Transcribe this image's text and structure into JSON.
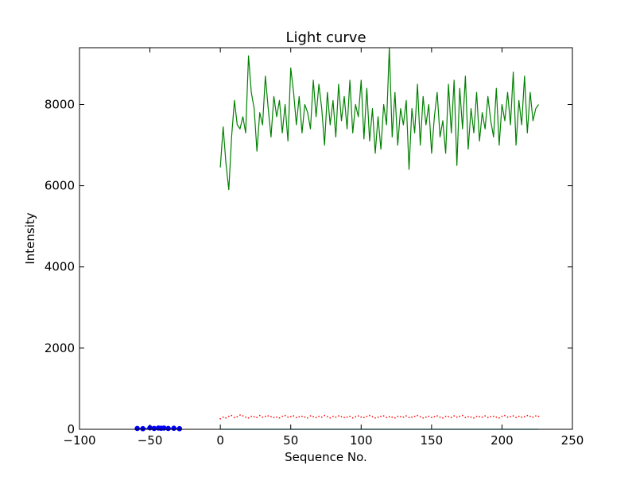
{
  "chart_data": {
    "type": "line",
    "title": "Light curve",
    "xlabel": "Sequence No.",
    "ylabel": "Intensity",
    "xlim": [
      -100,
      250
    ],
    "ylim": [
      0,
      9400
    ],
    "xticks": [
      -100,
      -50,
      0,
      50,
      100,
      150,
      200,
      250
    ],
    "yticks": [
      0,
      2000,
      4000,
      6000,
      8000
    ],
    "x_tick_labels": [
      "−100",
      "−50",
      "0",
      "50",
      "100",
      "150",
      "200",
      "250"
    ],
    "y_tick_labels": [
      "0",
      "2000",
      "4000",
      "6000",
      "8000"
    ],
    "grid": false,
    "legend": "none",
    "series": [
      {
        "style": "line",
        "color": "#008000",
        "x": [
          0,
          2,
          4,
          6,
          8,
          10,
          12,
          14,
          16,
          18,
          20,
          22,
          24,
          26,
          28,
          30,
          32,
          34,
          36,
          38,
          40,
          42,
          44,
          46,
          48,
          50,
          52,
          54,
          56,
          58,
          60,
          62,
          64,
          66,
          68,
          70,
          72,
          74,
          76,
          78,
          80,
          82,
          84,
          86,
          88,
          90,
          92,
          94,
          96,
          98,
          100,
          102,
          104,
          106,
          108,
          110,
          112,
          114,
          116,
          118,
          120,
          122,
          124,
          126,
          128,
          130,
          132,
          134,
          136,
          138,
          140,
          142,
          144,
          146,
          148,
          150,
          152,
          154,
          156,
          158,
          160,
          162,
          164,
          166,
          168,
          170,
          172,
          174,
          176,
          178,
          180,
          182,
          184,
          186,
          188,
          190,
          192,
          194,
          196,
          198,
          200,
          202,
          204,
          206,
          208,
          210,
          212,
          214,
          216,
          218,
          220,
          222,
          224,
          226
        ],
        "y": [
          6450,
          7450,
          6550,
          5900,
          7200,
          8100,
          7500,
          7400,
          7700,
          7300,
          9200,
          8300,
          7900,
          6850,
          7800,
          7500,
          8700,
          7900,
          7200,
          8200,
          7700,
          8100,
          7300,
          8000,
          7100,
          8900,
          8300,
          7500,
          8200,
          7300,
          8000,
          7800,
          7400,
          8600,
          7700,
          8500,
          7900,
          7000,
          8300,
          7500,
          8100,
          7200,
          8500,
          7600,
          8200,
          7400,
          8600,
          7300,
          8000,
          7700,
          8600,
          7150,
          8400,
          7100,
          7900,
          6800,
          7700,
          6900,
          8000,
          7500,
          9400,
          7200,
          8300,
          7000,
          7900,
          7500,
          8100,
          6400,
          7900,
          7300,
          8500,
          7000,
          8200,
          7500,
          8000,
          6800,
          7700,
          8300,
          7200,
          7600,
          6800,
          8500,
          7300,
          8600,
          6500,
          8400,
          7400,
          8700,
          6900,
          7900,
          7300,
          8300,
          7100,
          7800,
          7400,
          8200,
          7600,
          7200,
          8400,
          7000,
          8000,
          7600,
          8300,
          7500,
          8800,
          7000,
          8100,
          7500,
          8700,
          7300,
          8300,
          7600,
          7900,
          8000
        ],
        "marker_x": [],
        "marker_y": []
      },
      {
        "style": "points",
        "color": "#ff0000",
        "x": [
          0,
          2,
          4,
          6,
          8,
          10,
          12,
          14,
          16,
          18,
          20,
          22,
          24,
          26,
          28,
          30,
          32,
          34,
          36,
          38,
          40,
          42,
          44,
          46,
          48,
          50,
          52,
          54,
          56,
          58,
          60,
          62,
          64,
          66,
          68,
          70,
          72,
          74,
          76,
          78,
          80,
          82,
          84,
          86,
          88,
          90,
          92,
          94,
          96,
          98,
          100,
          102,
          104,
          106,
          108,
          110,
          112,
          114,
          116,
          118,
          120,
          122,
          124,
          126,
          128,
          130,
          132,
          134,
          136,
          138,
          140,
          142,
          144,
          146,
          148,
          150,
          152,
          154,
          156,
          158,
          160,
          162,
          164,
          166,
          168,
          170,
          172,
          174,
          176,
          178,
          180,
          182,
          184,
          186,
          188,
          190,
          192,
          194,
          196,
          198,
          200,
          202,
          204,
          206,
          208,
          210,
          212,
          214,
          216,
          218,
          220,
          222,
          224,
          226
        ],
        "y": [
          260,
          300,
          280,
          320,
          340,
          290,
          310,
          350,
          330,
          300,
          280,
          320,
          310,
          290,
          340,
          300,
          320,
          330,
          310,
          290,
          300,
          280,
          320,
          340,
          300,
          310,
          330,
          290,
          310,
          320,
          300,
          280,
          330,
          310,
          290,
          320,
          300,
          340,
          310,
          280,
          320,
          300,
          330,
          310,
          290,
          300,
          320,
          280,
          310,
          330,
          300,
          290,
          320,
          340,
          310,
          280,
          300,
          320,
          330,
          290,
          310,
          300,
          280,
          320,
          310,
          300,
          330,
          290,
          300,
          320,
          340,
          310,
          280,
          300,
          320,
          290,
          310,
          330,
          300,
          280,
          320,
          310,
          290,
          330,
          300,
          320,
          340,
          290,
          310,
          300,
          280,
          320,
          310,
          300,
          330,
          290,
          310,
          320,
          300,
          280,
          320,
          340,
          300,
          310,
          330,
          290,
          320,
          300,
          310,
          340,
          320,
          300,
          330,
          320
        ]
      },
      {
        "style": "line",
        "color": "#0000ff",
        "x": [
          -60,
          -58,
          -56,
          -54,
          -52,
          -50,
          -48,
          -46,
          -44,
          -42,
          -40,
          -38,
          -36,
          -34,
          -32,
          -30,
          -28
        ],
        "y": [
          10,
          30,
          5,
          20,
          15,
          40,
          10,
          25,
          30,
          20,
          35,
          15,
          25,
          10,
          30,
          20,
          15
        ],
        "marker_x": [
          -59,
          -55,
          -50,
          -47,
          -44,
          -42,
          -40,
          -37,
          -33,
          -29
        ],
        "marker_y": [
          20,
          15,
          35,
          20,
          30,
          25,
          30,
          20,
          25,
          15
        ]
      },
      {
        "style": "line",
        "color": "#00bfbf",
        "x": [
          0,
          226
        ],
        "y": [
          0,
          0
        ]
      }
    ]
  }
}
